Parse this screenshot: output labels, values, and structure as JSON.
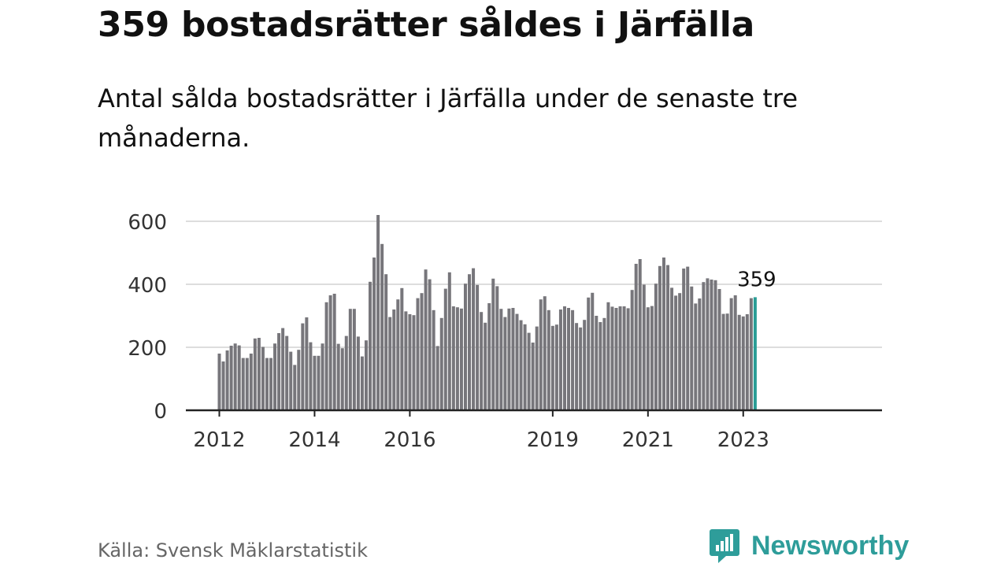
{
  "header": {
    "title": "359 bostadsrätter såldes i Järfälla",
    "subtitle": "Antal sålda bostadsrätter i Järfälla under de senaste tre månaderna."
  },
  "footer": {
    "source": "Källa: Svensk Mäklarstatistik",
    "brand": "Newsworthy"
  },
  "colors": {
    "bar": "#77767b",
    "highlight": "#2a9d95",
    "grid": "#dddddd",
    "axis": "#222222",
    "brand": "#2e9d9a"
  },
  "chart_data": {
    "type": "bar",
    "title": "",
    "xlabel": "",
    "ylabel": "",
    "ylim": [
      0,
      620
    ],
    "yticks": [
      0,
      200,
      400,
      600
    ],
    "x_tick_labels": [
      {
        "label": "2012",
        "index": 0
      },
      {
        "label": "2014",
        "index": 24
      },
      {
        "label": "2016",
        "index": 48
      },
      {
        "label": "2019",
        "index": 84
      },
      {
        "label": "2021",
        "index": 108
      },
      {
        "label": "2023",
        "index": 132
      }
    ],
    "start": "2012-01",
    "end": "2023-02",
    "granularity": "month (rolling three-month sum)",
    "highlight_label": "359",
    "values": [
      180,
      155,
      190,
      205,
      212,
      206,
      166,
      166,
      180,
      228,
      230,
      201,
      166,
      166,
      212,
      245,
      261,
      236,
      186,
      144,
      192,
      276,
      295,
      216,
      173,
      173,
      212,
      343,
      365,
      370,
      211,
      197,
      236,
      322,
      322,
      234,
      171,
      222,
      408,
      485,
      620,
      528,
      432,
      296,
      320,
      352,
      388,
      314,
      305,
      302,
      356,
      372,
      447,
      416,
      318,
      204,
      293,
      386,
      438,
      330,
      327,
      323,
      402,
      432,
      451,
      398,
      312,
      278,
      340,
      418,
      394,
      322,
      296,
      323,
      325,
      306,
      286,
      273,
      246,
      215,
      266,
      352,
      362,
      318,
      268,
      272,
      320,
      330,
      325,
      318,
      277,
      263,
      287,
      358,
      373,
      300,
      280,
      293,
      343,
      329,
      325,
      330,
      330,
      324,
      382,
      465,
      480,
      399,
      327,
      331,
      402,
      458,
      485,
      461,
      389,
      364,
      372,
      450,
      456,
      393,
      339,
      355,
      407,
      419,
      415,
      413,
      385,
      306,
      307,
      356,
      365,
      303,
      298,
      305,
      356,
      359
    ]
  }
}
